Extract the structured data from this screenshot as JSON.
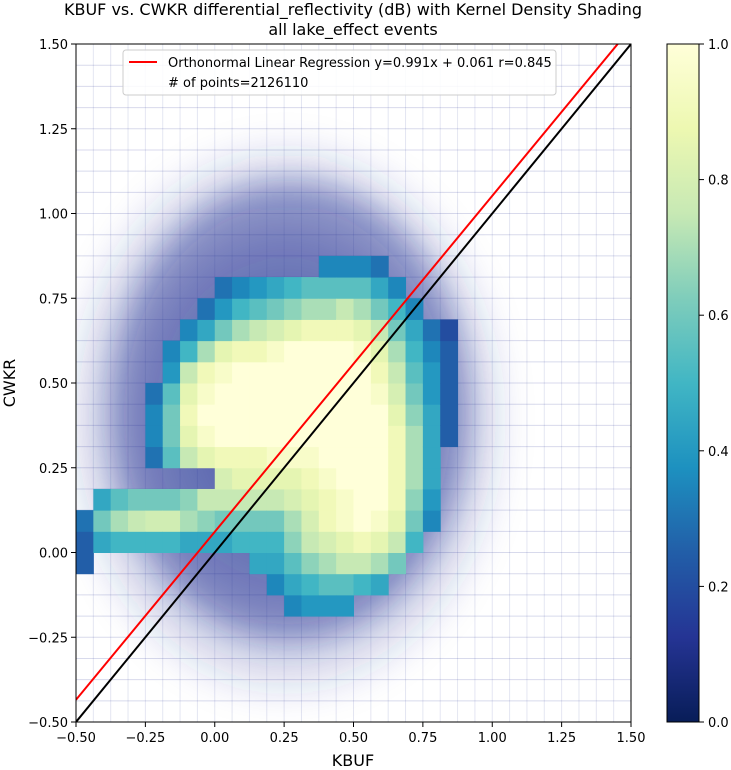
{
  "chart_data": {
    "type": "scatter",
    "title": "KBUF vs. CWKR differential_reflectivity (dB) with Kernel Density Shading",
    "subtitle": "all lake_effect events",
    "xlabel": "KBUF",
    "ylabel": "CWKR",
    "xlim": [
      -0.5,
      1.5
    ],
    "ylim": [
      -0.5,
      1.5
    ],
    "xticks": [
      "−0.50",
      "−0.25",
      "0.00",
      "0.25",
      "0.50",
      "0.75",
      "1.00",
      "1.25",
      "1.50"
    ],
    "yticks": [
      "−0.50",
      "−0.25",
      "0.00",
      "0.25",
      "0.50",
      "0.75",
      "1.00",
      "1.25",
      "1.50"
    ],
    "grid": false,
    "legend_position": "top-center",
    "legend": [
      {
        "label": "Orthonormal Linear Regression y=0.991x + 0.061 r=0.845",
        "color": "#ff0000",
        "kind": "line"
      },
      {
        "label": "# of points=2126110",
        "kind": "text"
      }
    ],
    "series": [
      {
        "kind": "regression",
        "slope": 0.991,
        "intercept": 0.061,
        "color": "#ff0000",
        "x": [
          -0.5,
          1.5
        ]
      },
      {
        "kind": "one_to_one",
        "slope": 1.0,
        "intercept": 0.0,
        "color": "#000000",
        "x": [
          -0.5,
          1.5
        ]
      }
    ],
    "n_points": 2126110,
    "colorbar": {
      "colormap": "YlGnBu_r",
      "range": [
        0.0,
        1.0
      ],
      "ticks": [
        "0.0",
        "0.2",
        "0.4",
        "0.6",
        "0.8",
        "1.0"
      ],
      "stops": [
        "#081d58",
        "#253494",
        "#225ea8",
        "#1d91c0",
        "#41b6c4",
        "#7fcdbb",
        "#c7e9b4",
        "#edf8b1",
        "#ffffd9"
      ]
    },
    "density_grid": {
      "bin_width": 0.0625,
      "note_units": "normalized density 0-1",
      "cells": [
        [
          -0.5,
          -0.0625,
          0.25
        ],
        [
          -0.5,
          0.0,
          0.25
        ],
        [
          -0.5,
          0.0625,
          0.3
        ],
        [
          -0.4375,
          0.0,
          0.45
        ],
        [
          -0.4375,
          0.0625,
          0.6
        ],
        [
          -0.4375,
          0.125,
          0.45
        ],
        [
          -0.375,
          0.0,
          0.5
        ],
        [
          -0.375,
          0.0625,
          0.7
        ],
        [
          -0.375,
          0.125,
          0.55
        ],
        [
          -0.3125,
          0.0,
          0.5
        ],
        [
          -0.3125,
          0.0625,
          0.75
        ],
        [
          -0.3125,
          0.125,
          0.6
        ],
        [
          -0.25,
          0.0,
          0.5
        ],
        [
          -0.25,
          0.0625,
          0.78
        ],
        [
          -0.25,
          0.125,
          0.6
        ],
        [
          -0.25,
          0.25,
          0.3
        ],
        [
          -0.25,
          0.3125,
          0.35
        ],
        [
          -0.25,
          0.375,
          0.35
        ],
        [
          -0.25,
          0.4375,
          0.3
        ],
        [
          -0.1875,
          0.0,
          0.5
        ],
        [
          -0.1875,
          0.0625,
          0.78
        ],
        [
          -0.1875,
          0.125,
          0.6
        ],
        [
          -0.1875,
          0.25,
          0.55
        ],
        [
          -0.1875,
          0.3125,
          0.6
        ],
        [
          -0.1875,
          0.375,
          0.6
        ],
        [
          -0.1875,
          0.4375,
          0.55
        ],
        [
          -0.1875,
          0.5,
          0.4
        ],
        [
          -0.1875,
          0.5625,
          0.35
        ],
        [
          -0.125,
          0.0,
          0.45
        ],
        [
          -0.125,
          0.0625,
          0.7
        ],
        [
          -0.125,
          0.125,
          0.65
        ],
        [
          -0.125,
          0.25,
          0.75
        ],
        [
          -0.125,
          0.3125,
          0.85
        ],
        [
          -0.125,
          0.375,
          0.9
        ],
        [
          -0.125,
          0.4375,
          0.85
        ],
        [
          -0.125,
          0.5,
          0.75
        ],
        [
          -0.125,
          0.5625,
          0.5
        ],
        [
          -0.125,
          0.625,
          0.35
        ],
        [
          -0.0625,
          0.0,
          0.45
        ],
        [
          -0.0625,
          0.0625,
          0.65
        ],
        [
          -0.0625,
          0.125,
          0.75
        ],
        [
          -0.0625,
          0.25,
          0.85
        ],
        [
          -0.0625,
          0.3125,
          0.95
        ],
        [
          -0.0625,
          0.375,
          1.0
        ],
        [
          -0.0625,
          0.4375,
          0.95
        ],
        [
          -0.0625,
          0.5,
          0.9
        ],
        [
          -0.0625,
          0.5625,
          0.7
        ],
        [
          -0.0625,
          0.625,
          0.45
        ],
        [
          -0.0625,
          0.6875,
          0.3
        ],
        [
          0.0,
          0.0,
          0.45
        ],
        [
          0.0,
          0.0625,
          0.6
        ],
        [
          0.0,
          0.125,
          0.75
        ],
        [
          0.0,
          0.1875,
          0.8
        ],
        [
          0.0,
          0.25,
          0.9
        ],
        [
          0.0,
          0.3125,
          1.0
        ],
        [
          0.0,
          0.375,
          1.0
        ],
        [
          0.0,
          0.4375,
          1.0
        ],
        [
          0.0,
          0.5,
          0.95
        ],
        [
          0.0,
          0.5625,
          0.85
        ],
        [
          0.0,
          0.625,
          0.6
        ],
        [
          0.0,
          0.6875,
          0.4
        ],
        [
          0.0,
          0.75,
          0.3
        ],
        [
          0.0625,
          0.0,
          0.5
        ],
        [
          0.0625,
          0.0625,
          0.6
        ],
        [
          0.0625,
          0.125,
          0.75
        ],
        [
          0.0625,
          0.1875,
          0.85
        ],
        [
          0.0625,
          0.25,
          0.9
        ],
        [
          0.0625,
          0.3125,
          1.0
        ],
        [
          0.0625,
          0.375,
          1.0
        ],
        [
          0.0625,
          0.4375,
          1.0
        ],
        [
          0.0625,
          0.5,
          1.0
        ],
        [
          0.0625,
          0.5625,
          0.9
        ],
        [
          0.0625,
          0.625,
          0.7
        ],
        [
          0.0625,
          0.6875,
          0.5
        ],
        [
          0.0625,
          0.75,
          0.35
        ],
        [
          0.125,
          -0.0625,
          0.45
        ],
        [
          0.125,
          0.0,
          0.5
        ],
        [
          0.125,
          0.0625,
          0.6
        ],
        [
          0.125,
          0.125,
          0.75
        ],
        [
          0.125,
          0.1875,
          0.85
        ],
        [
          0.125,
          0.25,
          0.9
        ],
        [
          0.125,
          0.3125,
          1.0
        ],
        [
          0.125,
          0.375,
          1.0
        ],
        [
          0.125,
          0.4375,
          1.0
        ],
        [
          0.125,
          0.5,
          1.0
        ],
        [
          0.125,
          0.5625,
          0.9
        ],
        [
          0.125,
          0.625,
          0.75
        ],
        [
          0.125,
          0.6875,
          0.55
        ],
        [
          0.125,
          0.75,
          0.4
        ],
        [
          0.1875,
          -0.125,
          0.35
        ],
        [
          0.1875,
          -0.0625,
          0.45
        ],
        [
          0.1875,
          0.0,
          0.5
        ],
        [
          0.1875,
          0.0625,
          0.6
        ],
        [
          0.1875,
          0.125,
          0.75
        ],
        [
          0.1875,
          0.1875,
          0.85
        ],
        [
          0.1875,
          0.25,
          0.95
        ],
        [
          0.1875,
          0.3125,
          1.0
        ],
        [
          0.1875,
          0.375,
          1.0
        ],
        [
          0.1875,
          0.4375,
          1.0
        ],
        [
          0.1875,
          0.5,
          1.0
        ],
        [
          0.1875,
          0.5625,
          0.95
        ],
        [
          0.1875,
          0.625,
          0.8
        ],
        [
          0.1875,
          0.6875,
          0.6
        ],
        [
          0.1875,
          0.75,
          0.45
        ],
        [
          0.25,
          -0.1875,
          0.35
        ],
        [
          0.25,
          -0.125,
          0.45
        ],
        [
          0.25,
          -0.0625,
          0.55
        ],
        [
          0.25,
          0.0,
          0.65
        ],
        [
          0.25,
          0.0625,
          0.7
        ],
        [
          0.25,
          0.125,
          0.8
        ],
        [
          0.25,
          0.1875,
          0.85
        ],
        [
          0.25,
          0.25,
          0.95
        ],
        [
          0.25,
          0.3125,
          1.0
        ],
        [
          0.25,
          0.375,
          1.0
        ],
        [
          0.25,
          0.4375,
          1.0
        ],
        [
          0.25,
          0.5,
          1.0
        ],
        [
          0.25,
          0.5625,
          1.0
        ],
        [
          0.25,
          0.625,
          0.85
        ],
        [
          0.25,
          0.6875,
          0.65
        ],
        [
          0.25,
          0.75,
          0.5
        ],
        [
          0.3125,
          -0.1875,
          0.4
        ],
        [
          0.3125,
          -0.125,
          0.5
        ],
        [
          0.3125,
          -0.0625,
          0.65
        ],
        [
          0.3125,
          0.0,
          0.75
        ],
        [
          0.3125,
          0.0625,
          0.8
        ],
        [
          0.3125,
          0.125,
          0.85
        ],
        [
          0.3125,
          0.1875,
          0.9
        ],
        [
          0.3125,
          0.25,
          0.95
        ],
        [
          0.3125,
          0.3125,
          1.0
        ],
        [
          0.3125,
          0.375,
          1.0
        ],
        [
          0.3125,
          0.4375,
          1.0
        ],
        [
          0.3125,
          0.5,
          1.0
        ],
        [
          0.3125,
          0.5625,
          1.0
        ],
        [
          0.3125,
          0.625,
          0.9
        ],
        [
          0.3125,
          0.6875,
          0.7
        ],
        [
          0.3125,
          0.75,
          0.55
        ],
        [
          0.375,
          -0.1875,
          0.4
        ],
        [
          0.375,
          -0.125,
          0.55
        ],
        [
          0.375,
          -0.0625,
          0.7
        ],
        [
          0.375,
          0.0,
          0.8
        ],
        [
          0.375,
          0.0625,
          0.9
        ],
        [
          0.375,
          0.125,
          0.9
        ],
        [
          0.375,
          0.1875,
          0.95
        ],
        [
          0.375,
          0.25,
          1.0
        ],
        [
          0.375,
          0.3125,
          1.0
        ],
        [
          0.375,
          0.375,
          1.0
        ],
        [
          0.375,
          0.4375,
          1.0
        ],
        [
          0.375,
          0.5,
          1.0
        ],
        [
          0.375,
          0.5625,
          1.0
        ],
        [
          0.375,
          0.625,
          0.9
        ],
        [
          0.375,
          0.6875,
          0.7
        ],
        [
          0.375,
          0.75,
          0.55
        ],
        [
          0.375,
          0.8125,
          0.35
        ],
        [
          0.4375,
          -0.1875,
          0.4
        ],
        [
          0.4375,
          -0.125,
          0.55
        ],
        [
          0.4375,
          -0.0625,
          0.75
        ],
        [
          0.4375,
          0.0,
          0.85
        ],
        [
          0.4375,
          0.0625,
          0.95
        ],
        [
          0.4375,
          0.125,
          0.95
        ],
        [
          0.4375,
          0.1875,
          1.0
        ],
        [
          0.4375,
          0.25,
          1.0
        ],
        [
          0.4375,
          0.3125,
          1.0
        ],
        [
          0.4375,
          0.375,
          1.0
        ],
        [
          0.4375,
          0.4375,
          1.0
        ],
        [
          0.4375,
          0.5,
          1.0
        ],
        [
          0.4375,
          0.5625,
          1.0
        ],
        [
          0.4375,
          0.625,
          0.9
        ],
        [
          0.4375,
          0.6875,
          0.75
        ],
        [
          0.4375,
          0.75,
          0.55
        ],
        [
          0.4375,
          0.8125,
          0.35
        ],
        [
          0.5,
          -0.125,
          0.5
        ],
        [
          0.5,
          -0.0625,
          0.75
        ],
        [
          0.5,
          0.0,
          0.9
        ],
        [
          0.5,
          0.0625,
          1.0
        ],
        [
          0.5,
          0.125,
          1.0
        ],
        [
          0.5,
          0.1875,
          1.0
        ],
        [
          0.5,
          0.25,
          1.0
        ],
        [
          0.5,
          0.3125,
          1.0
        ],
        [
          0.5,
          0.375,
          1.0
        ],
        [
          0.5,
          0.4375,
          1.0
        ],
        [
          0.5,
          0.5,
          1.0
        ],
        [
          0.5,
          0.5625,
          0.95
        ],
        [
          0.5,
          0.625,
          0.85
        ],
        [
          0.5,
          0.6875,
          0.7
        ],
        [
          0.5,
          0.75,
          0.55
        ],
        [
          0.5,
          0.8125,
          0.35
        ],
        [
          0.5625,
          -0.125,
          0.45
        ],
        [
          0.5625,
          -0.0625,
          0.7
        ],
        [
          0.5625,
          0.0,
          0.85
        ],
        [
          0.5625,
          0.0625,
          0.95
        ],
        [
          0.5625,
          0.125,
          1.0
        ],
        [
          0.5625,
          0.1875,
          1.0
        ],
        [
          0.5625,
          0.25,
          1.0
        ],
        [
          0.5625,
          0.3125,
          1.0
        ],
        [
          0.5625,
          0.375,
          1.0
        ],
        [
          0.5625,
          0.4375,
          0.95
        ],
        [
          0.5625,
          0.5,
          0.9
        ],
        [
          0.5625,
          0.5625,
          0.85
        ],
        [
          0.5625,
          0.625,
          0.75
        ],
        [
          0.5625,
          0.6875,
          0.6
        ],
        [
          0.5625,
          0.75,
          0.45
        ],
        [
          0.5625,
          0.8125,
          0.3
        ],
        [
          0.625,
          -0.0625,
          0.6
        ],
        [
          0.625,
          0.0,
          0.75
        ],
        [
          0.625,
          0.0625,
          0.85
        ],
        [
          0.625,
          0.125,
          0.9
        ],
        [
          0.625,
          0.1875,
          0.9
        ],
        [
          0.625,
          0.25,
          0.9
        ],
        [
          0.625,
          0.3125,
          0.9
        ],
        [
          0.625,
          0.375,
          0.85
        ],
        [
          0.625,
          0.4375,
          0.8
        ],
        [
          0.625,
          0.5,
          0.75
        ],
        [
          0.625,
          0.5625,
          0.7
        ],
        [
          0.625,
          0.625,
          0.6
        ],
        [
          0.625,
          0.6875,
          0.5
        ],
        [
          0.625,
          0.75,
          0.35
        ],
        [
          0.6875,
          0.0,
          0.5
        ],
        [
          0.6875,
          0.0625,
          0.6
        ],
        [
          0.6875,
          0.125,
          0.65
        ],
        [
          0.6875,
          0.1875,
          0.7
        ],
        [
          0.6875,
          0.25,
          0.7
        ],
        [
          0.6875,
          0.3125,
          0.7
        ],
        [
          0.6875,
          0.375,
          0.65
        ],
        [
          0.6875,
          0.4375,
          0.6
        ],
        [
          0.6875,
          0.5,
          0.55
        ],
        [
          0.6875,
          0.5625,
          0.5
        ],
        [
          0.6875,
          0.625,
          0.45
        ],
        [
          0.6875,
          0.6875,
          0.35
        ],
        [
          0.75,
          0.0625,
          0.35
        ],
        [
          0.75,
          0.125,
          0.4
        ],
        [
          0.75,
          0.1875,
          0.45
        ],
        [
          0.75,
          0.25,
          0.45
        ],
        [
          0.75,
          0.3125,
          0.45
        ],
        [
          0.75,
          0.375,
          0.45
        ],
        [
          0.75,
          0.4375,
          0.4
        ],
        [
          0.75,
          0.5,
          0.4
        ],
        [
          0.75,
          0.5625,
          0.35
        ],
        [
          0.75,
          0.625,
          0.3
        ],
        [
          0.8125,
          0.3125,
          0.25
        ],
        [
          0.8125,
          0.375,
          0.25
        ],
        [
          0.8125,
          0.4375,
          0.25
        ],
        [
          0.8125,
          0.5,
          0.25
        ],
        [
          0.8125,
          0.5625,
          0.25
        ],
        [
          0.8125,
          0.625,
          0.2
        ]
      ]
    }
  }
}
